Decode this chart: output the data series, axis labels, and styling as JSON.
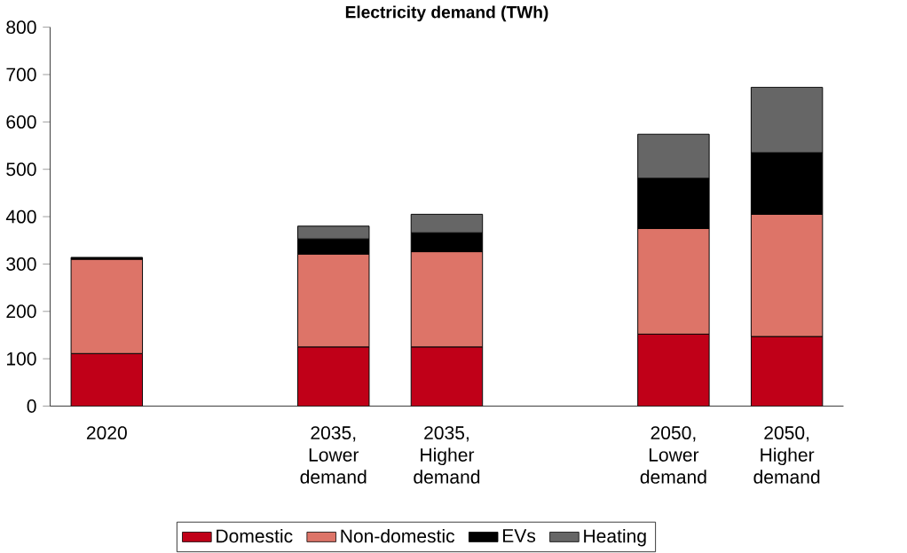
{
  "chart_data": {
    "type": "bar",
    "title": "Electricity demand (TWh)",
    "stacked": true,
    "categories": [
      "2020",
      null,
      "2035, Lower demand",
      "2035, Higher demand",
      null,
      "2050, Lower demand",
      "2050, Higher demand"
    ],
    "series": [
      {
        "name": "Domestic",
        "color": "#c00018",
        "values": [
          111,
          null,
          125,
          125,
          null,
          152,
          147
        ]
      },
      {
        "name": "Non-domestic",
        "color": "#dd7468",
        "values": [
          199,
          null,
          196,
          201,
          null,
          223,
          258
        ]
      },
      {
        "name": "EVs",
        "color": "#000000",
        "values": [
          4,
          null,
          32,
          40,
          null,
          106,
          130
        ]
      },
      {
        "name": "Heating",
        "color": "#666666",
        "values": [
          null,
          null,
          27,
          39,
          null,
          93,
          138
        ]
      }
    ],
    "ylim": [
      0,
      800
    ],
    "yticks": [
      0,
      100,
      200,
      300,
      400,
      500,
      600,
      700,
      800
    ],
    "legend": "bottom"
  }
}
